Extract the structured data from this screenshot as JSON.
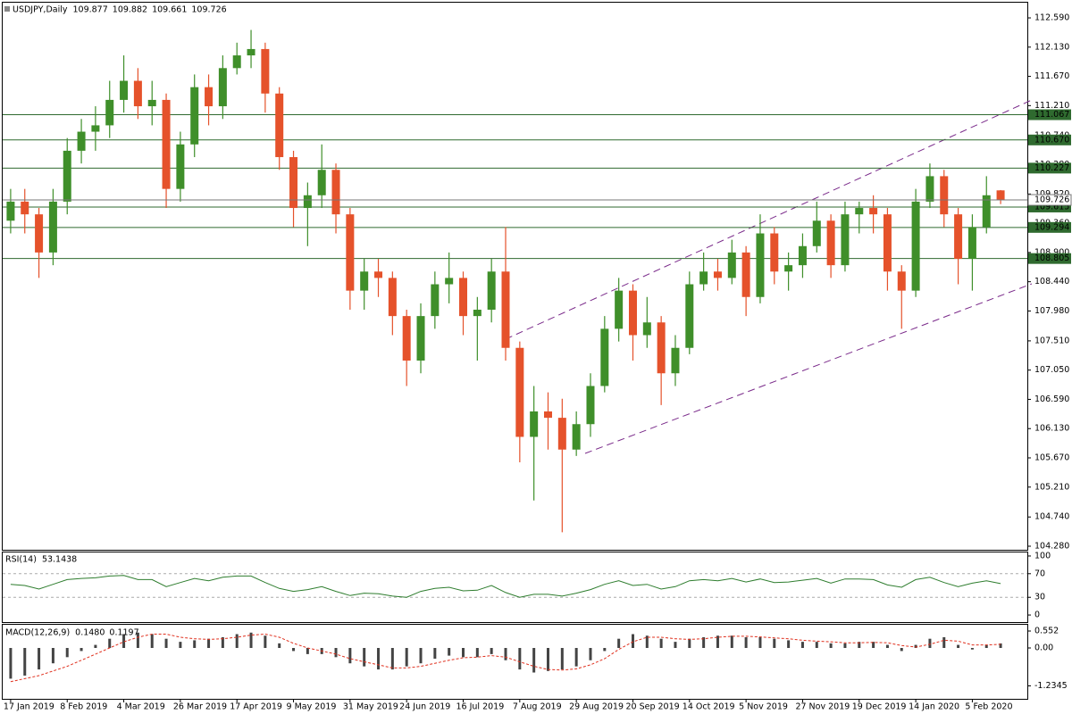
{
  "chart_data": [
    {
      "type": "candlestick",
      "title": "USDJPY,Daily",
      "categories": [
        "17 Jan 2019",
        null,
        null,
        null,
        "8 Feb 2019",
        null,
        null,
        null,
        "4 Mar 2019",
        null,
        null,
        null,
        "26 Mar 2019",
        null,
        null,
        null,
        "17 Apr 2019",
        null,
        null,
        null,
        "9 May 2019",
        null,
        null,
        null,
        "31 May 2019",
        null,
        null,
        null,
        "24 Jun 2019",
        null,
        null,
        null,
        "16 Jul 2019",
        null,
        null,
        null,
        "7 Aug 2019",
        null,
        null,
        null,
        "29 Aug 2019",
        null,
        null,
        null,
        "20 Sep 2019",
        null,
        null,
        null,
        "14 Oct 2019",
        null,
        null,
        null,
        "5 Nov 2019",
        null,
        null,
        null,
        "27 Nov 2019",
        null,
        null,
        null,
        "19 Dec 2019",
        null,
        null,
        null,
        "14 Jan 2020",
        null,
        null,
        null,
        "5 Feb 2020",
        null,
        null
      ],
      "open": [
        109.4,
        109.7,
        109.5,
        108.9,
        109.7,
        110.5,
        110.8,
        110.9,
        111.3,
        111.6,
        111.2,
        111.3,
        109.9,
        110.6,
        111.5,
        111.2,
        111.8,
        112.0,
        112.1,
        111.4,
        110.4,
        109.6,
        109.8,
        110.2,
        109.5,
        108.3,
        108.6,
        108.5,
        107.9,
        107.2,
        107.9,
        108.4,
        108.5,
        107.9,
        108.0,
        108.6,
        107.4,
        106.0,
        106.4,
        106.3,
        105.8,
        106.2,
        106.8,
        107.7,
        108.3,
        107.6,
        107.8,
        107.0,
        107.4,
        108.4,
        108.6,
        108.5,
        108.9,
        108.2,
        109.2,
        108.6,
        108.7,
        109.0,
        109.4,
        108.7,
        109.5,
        109.6,
        109.5,
        108.6,
        108.3,
        109.7,
        110.1,
        109.5,
        108.8,
        109.3,
        109.877
      ],
      "high": [
        109.9,
        109.9,
        109.6,
        109.9,
        110.7,
        111.0,
        111.2,
        111.6,
        112.0,
        111.8,
        111.6,
        111.4,
        110.8,
        111.7,
        111.7,
        112.0,
        112.2,
        112.4,
        112.2,
        111.5,
        110.5,
        110.0,
        110.6,
        110.3,
        109.6,
        108.8,
        108.8,
        108.6,
        108.0,
        108.1,
        108.6,
        108.9,
        108.6,
        108.2,
        108.8,
        109.3,
        107.5,
        106.8,
        106.7,
        106.6,
        106.4,
        107.0,
        107.9,
        108.5,
        108.4,
        108.2,
        107.9,
        107.6,
        108.6,
        108.9,
        108.8,
        109.1,
        109.0,
        109.5,
        109.3,
        108.9,
        109.2,
        109.7,
        109.5,
        109.7,
        109.7,
        109.8,
        109.6,
        108.7,
        109.9,
        110.3,
        110.2,
        109.6,
        109.5,
        110.1,
        109.882
      ],
      "low": [
        109.2,
        109.2,
        108.5,
        108.7,
        109.5,
        110.3,
        110.5,
        110.7,
        111.1,
        111.0,
        110.9,
        109.6,
        109.7,
        110.4,
        110.9,
        111.0,
        111.7,
        111.8,
        111.1,
        110.2,
        109.3,
        109.0,
        109.6,
        109.2,
        108.0,
        108.0,
        108.2,
        107.6,
        106.8,
        107.0,
        107.7,
        108.1,
        107.6,
        107.2,
        107.8,
        107.2,
        105.6,
        105.0,
        105.8,
        104.5,
        105.7,
        106.0,
        106.7,
        107.5,
        107.2,
        107.4,
        106.5,
        106.8,
        107.3,
        108.3,
        108.3,
        108.4,
        107.9,
        108.1,
        108.4,
        108.3,
        108.5,
        108.9,
        108.5,
        108.6,
        109.2,
        109.2,
        108.3,
        107.7,
        108.2,
        109.6,
        109.3,
        108.4,
        108.3,
        109.2,
        109.661
      ],
      "close": [
        109.7,
        109.5,
        108.9,
        109.7,
        110.5,
        110.8,
        110.9,
        111.3,
        111.6,
        111.2,
        111.3,
        109.9,
        110.6,
        111.5,
        111.2,
        111.8,
        112.0,
        112.1,
        111.4,
        110.4,
        109.6,
        109.8,
        110.2,
        109.5,
        108.3,
        108.6,
        108.5,
        107.9,
        107.2,
        107.9,
        108.4,
        108.5,
        107.9,
        108.0,
        108.6,
        107.4,
        106.0,
        106.4,
        106.3,
        105.8,
        106.2,
        106.8,
        107.7,
        108.3,
        107.6,
        107.8,
        107.0,
        107.4,
        108.4,
        108.6,
        108.5,
        108.9,
        108.2,
        109.2,
        108.6,
        108.7,
        109.0,
        109.4,
        108.7,
        109.5,
        109.6,
        109.5,
        108.6,
        108.3,
        109.7,
        110.1,
        109.5,
        108.8,
        109.3,
        109.8,
        109.726
      ],
      "up_color": "#3f8f2a",
      "down_color": "#e5522b",
      "ylim": [
        104.224,
        112.815
      ],
      "yticks": [
        {
          "value": 112.59,
          "label": "112.590"
        },
        {
          "value": 112.13,
          "label": "112.130"
        },
        {
          "value": 111.67,
          "label": "111.670"
        },
        {
          "value": 111.21,
          "label": "111.210"
        },
        {
          "value": 110.74,
          "label": "110.740"
        },
        {
          "value": 110.28,
          "label": "110.280"
        },
        {
          "value": 109.82,
          "label": "109.820"
        },
        {
          "value": 109.36,
          "label": "109.360"
        },
        {
          "value": 108.9,
          "label": "108.900"
        },
        {
          "value": 108.44,
          "label": "108.440"
        },
        {
          "value": 107.98,
          "label": "107.980"
        },
        {
          "value": 107.51,
          "label": "107.510"
        },
        {
          "value": 107.05,
          "label": "107.050"
        },
        {
          "value": 106.59,
          "label": "106.590"
        },
        {
          "value": 106.13,
          "label": "106.130"
        },
        {
          "value": 105.67,
          "label": "105.670"
        },
        {
          "value": 105.21,
          "label": "105.210"
        },
        {
          "value": 104.74,
          "label": "104.740"
        },
        {
          "value": 104.28,
          "label": "104.280"
        }
      ],
      "levels": [
        111.067,
        {
          "value": 110.67,
          "label": "110.670"
        },
        110.227,
        109.615,
        109.294,
        108.805
      ],
      "level_color": "#2f6a2f"
    },
    {
      "type": "line",
      "title": "RSI(14)",
      "values": [
        52,
        50,
        44,
        52,
        60,
        62,
        63,
        66,
        67,
        60,
        60,
        48,
        55,
        62,
        58,
        64,
        66,
        66,
        55,
        45,
        40,
        43,
        48,
        40,
        33,
        37,
        36,
        32,
        30,
        40,
        45,
        47,
        41,
        42,
        50,
        38,
        30,
        35,
        35,
        32,
        37,
        43,
        52,
        58,
        50,
        52,
        44,
        48,
        58,
        60,
        58,
        62,
        56,
        61,
        55,
        56,
        59,
        62,
        54,
        61,
        61,
        60,
        51,
        47,
        60,
        64,
        55,
        48,
        54,
        58,
        53.1438
      ],
      "color": "#2e7d2e",
      "ylim": [
        -12,
        106
      ],
      "yticks": [
        100,
        70,
        30,
        0
      ],
      "dashed_levels": [
        70,
        30
      ]
    },
    {
      "type": "macd",
      "title": "MACD(12,26,9)",
      "histogram": [
        -1.0,
        -0.9,
        -0.7,
        -0.5,
        -0.3,
        -0.1,
        0.1,
        0.3,
        0.45,
        0.5,
        0.45,
        0.3,
        0.2,
        0.25,
        0.3,
        0.35,
        0.45,
        0.5,
        0.4,
        0.15,
        -0.1,
        -0.2,
        -0.2,
        -0.3,
        -0.5,
        -0.6,
        -0.7,
        -0.7,
        -0.6,
        -0.5,
        -0.35,
        -0.25,
        -0.3,
        -0.3,
        -0.2,
        -0.4,
        -0.7,
        -0.8,
        -0.75,
        -0.7,
        -0.6,
        -0.4,
        -0.1,
        0.3,
        0.45,
        0.4,
        0.3,
        0.2,
        0.3,
        0.35,
        0.4,
        0.4,
        0.35,
        0.35,
        0.3,
        0.25,
        0.2,
        0.2,
        0.15,
        0.15,
        0.2,
        0.2,
        0.1,
        -0.1,
        0.1,
        0.3,
        0.35,
        0.1,
        -0.05,
        0.1,
        0.148
      ],
      "signal": [
        -1.1,
        -1.0,
        -0.9,
        -0.75,
        -0.6,
        -0.4,
        -0.2,
        0.0,
        0.2,
        0.35,
        0.45,
        0.45,
        0.35,
        0.3,
        0.28,
        0.3,
        0.35,
        0.42,
        0.45,
        0.35,
        0.15,
        0.0,
        -0.1,
        -0.2,
        -0.35,
        -0.45,
        -0.55,
        -0.65,
        -0.65,
        -0.6,
        -0.5,
        -0.4,
        -0.32,
        -0.3,
        -0.25,
        -0.3,
        -0.45,
        -0.6,
        -0.7,
        -0.72,
        -0.68,
        -0.55,
        -0.35,
        -0.05,
        0.2,
        0.35,
        0.35,
        0.3,
        0.28,
        0.3,
        0.35,
        0.38,
        0.38,
        0.36,
        0.33,
        0.3,
        0.25,
        0.22,
        0.2,
        0.17,
        0.17,
        0.18,
        0.17,
        0.08,
        0.03,
        0.12,
        0.25,
        0.22,
        0.1,
        0.1,
        0.1197
      ],
      "current": [
        {
          "value": 0.148,
          "label": "0.1480"
        },
        0.1197
      ],
      "histogram_color": "#444444",
      "signal_color": "#e0301e",
      "ylim": [
        -1.657,
        0.756
      ],
      "yticks": [
        0.552,
        {
          "value": 0,
          "label": "0.00"
        },
        -1.2345
      ]
    }
  ]
}
